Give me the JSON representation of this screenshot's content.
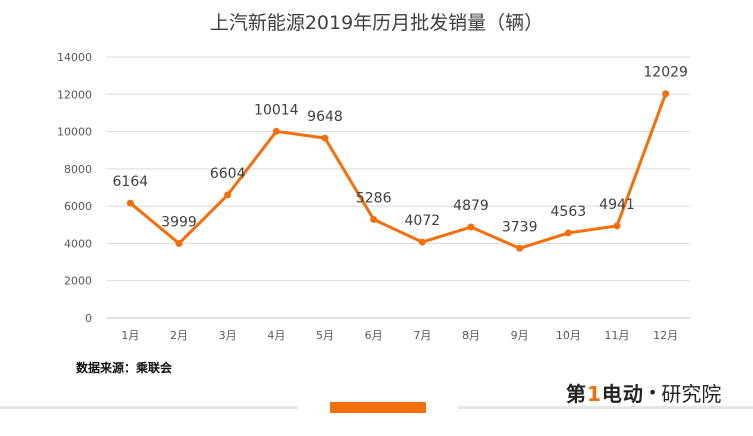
{
  "chart_data": {
    "type": "line",
    "title": "上汽新能源2019年历月批发销量（辆）",
    "categories": [
      "1月",
      "2月",
      "3月",
      "4月",
      "5月",
      "6月",
      "7月",
      "8月",
      "9月",
      "10月",
      "11月",
      "12月"
    ],
    "series": [
      {
        "values": [
          6164,
          3999,
          6604,
          10014,
          9648,
          5286,
          4072,
          4879,
          3739,
          4563,
          4941,
          12029
        ]
      }
    ],
    "y_ticks": [
      0,
      2000,
      4000,
      6000,
      8000,
      10000,
      12000,
      14000
    ],
    "ylim": [
      0,
      14000
    ],
    "grid": true,
    "colors": {
      "line": "#f26f0c",
      "grid": "#d9d9d9",
      "axis": "#bfbfbf",
      "text": "#595959",
      "label": "#404040"
    }
  },
  "source_label": "数据来源：乘联会",
  "brand": {
    "mark_prefix": "第",
    "mark_num": "1",
    "mark_suffix": "电动",
    "separator": "•",
    "name": "研究院"
  }
}
